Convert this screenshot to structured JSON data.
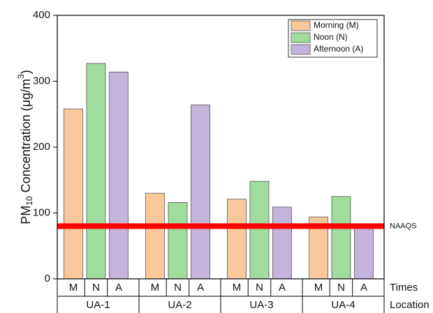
{
  "chart_data": {
    "type": "bar",
    "y_label_parts": [
      "PM",
      "10",
      " Concentration (μg/m",
      "3",
      ")"
    ],
    "categories": [
      "UA-1",
      "UA-2",
      "UA-3",
      "UA-4"
    ],
    "times": [
      "M",
      "N",
      "A"
    ],
    "times_label": "Times",
    "location_label": "Location",
    "series": [
      {
        "name": "Morning (M)",
        "color": "#f9c99c",
        "values": [
          258,
          130,
          121,
          94
        ]
      },
      {
        "name": "Noon (N)",
        "color": "#a0dc9c",
        "values": [
          327,
          116,
          148,
          125
        ]
      },
      {
        "name": "Afternoon (A)",
        "color": "#c4b4dc",
        "values": [
          314,
          264,
          109,
          78
        ]
      }
    ],
    "reference_line": {
      "label": "NAAQS",
      "value": 80,
      "color": "#ff0000"
    },
    "ylim": [
      0,
      400
    ],
    "yticks": [
      0,
      100,
      200,
      300,
      400
    ],
    "legend": "upper right",
    "grid": false
  }
}
